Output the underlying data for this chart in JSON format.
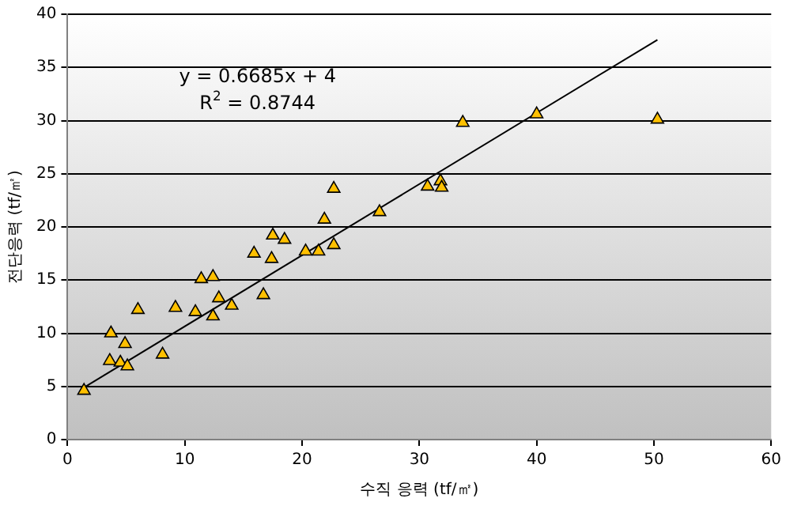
{
  "chart_data": {
    "type": "scatter",
    "xlabel": "수직 응력 (tf/㎡)",
    "ylabel": "전단응력 (tf/㎡)",
    "annotations": [
      "y = 0.6685x + 4",
      "R$^{2}$ = 0.8744"
    ],
    "xlim": [
      0,
      60
    ],
    "xticks": [
      0,
      10,
      20,
      30,
      40,
      50,
      60
    ],
    "ylim": [
      0,
      40
    ],
    "yticks": [
      0,
      5,
      10,
      15,
      20,
      25,
      30,
      35,
      40
    ],
    "grid": "y",
    "legend": false,
    "marker": "triangle",
    "series": [
      {
        "color": "#ffc000",
        "x": [
          1.4,
          3.6,
          3.7,
          4.5,
          4.9,
          5.1,
          6.0,
          8.1,
          9.2,
          10.9,
          11.4,
          12.4,
          12.4,
          12.9,
          14.0,
          15.9,
          16.7,
          17.4,
          17.5,
          18.5,
          20.3,
          21.4,
          21.9,
          22.7,
          22.7,
          26.6,
          30.7,
          31.8,
          31.9,
          33.7,
          40.0,
          50.3
        ],
        "values": [
          4.6,
          7.4,
          10.0,
          7.25,
          9.0,
          6.9,
          12.2,
          8.0,
          12.4,
          12.0,
          15.1,
          15.3,
          11.6,
          13.3,
          12.6,
          17.5,
          13.6,
          17.0,
          19.2,
          18.8,
          17.7,
          17.7,
          20.7,
          18.3,
          23.6,
          21.4,
          23.8,
          24.3,
          23.7,
          29.8,
          30.6,
          30.1
        ]
      },
      {
        "type": "line",
        "marker": "none",
        "color": "#000000",
        "x": [
          1.4,
          50.3
        ],
        "values": [
          4.9,
          37.6
        ]
      }
    ]
  }
}
